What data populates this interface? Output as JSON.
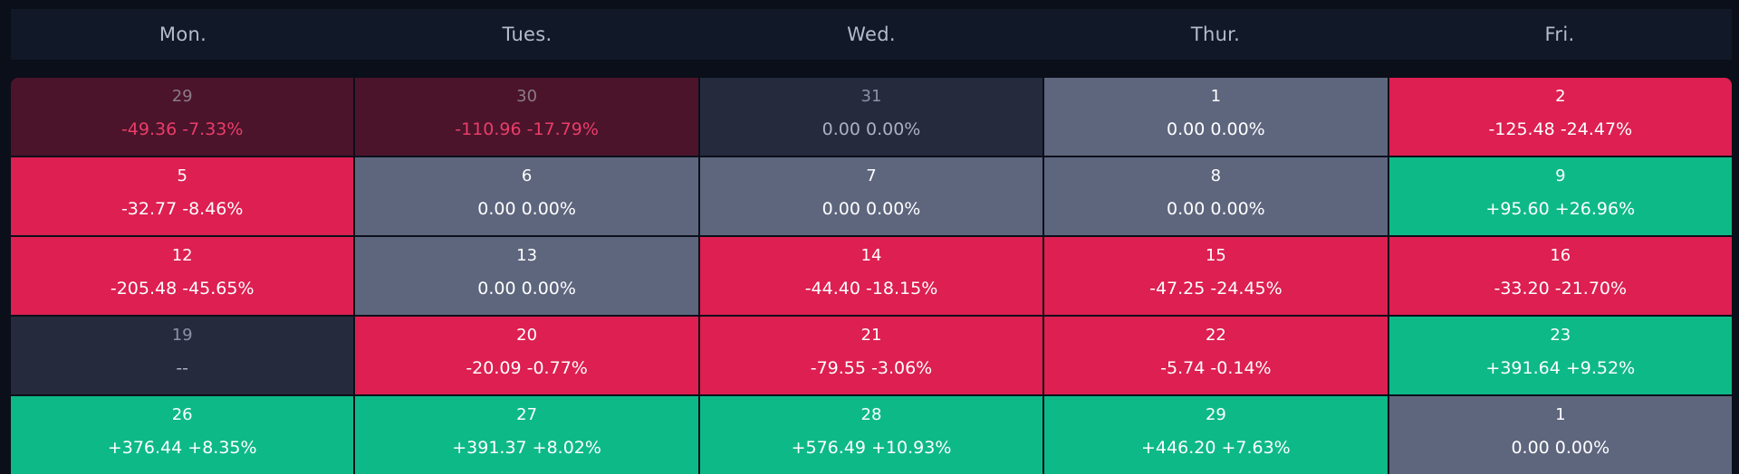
{
  "colors": {
    "background": "#0b0f1a",
    "header": "#111827",
    "loss": "#dd1f51",
    "gain": "#0eb988",
    "flat": "#5e667e",
    "muted_flat": "#252b3d",
    "muted_loss": "#4b142b"
  },
  "weekdays": [
    "Mon.",
    "Tues.",
    "Wed.",
    "Thur.",
    "Fri."
  ],
  "weeks": [
    [
      {
        "day": "29",
        "pnl": "-49.36 -7.33%",
        "status": "muted-down"
      },
      {
        "day": "30",
        "pnl": "-110.96 -17.79%",
        "status": "muted-down"
      },
      {
        "day": "31",
        "pnl": "0.00 0.00%",
        "status": "muted-flat"
      },
      {
        "day": "1",
        "pnl": "0.00 0.00%",
        "status": "flat"
      },
      {
        "day": "2",
        "pnl": "-125.48 -24.47%",
        "status": "down"
      }
    ],
    [
      {
        "day": "5",
        "pnl": "-32.77 -8.46%",
        "status": "down"
      },
      {
        "day": "6",
        "pnl": "0.00 0.00%",
        "status": "flat"
      },
      {
        "day": "7",
        "pnl": "0.00 0.00%",
        "status": "flat"
      },
      {
        "day": "8",
        "pnl": "0.00 0.00%",
        "status": "flat"
      },
      {
        "day": "9",
        "pnl": "+95.60 +26.96%",
        "status": "up"
      }
    ],
    [
      {
        "day": "12",
        "pnl": "-205.48 -45.65%",
        "status": "down"
      },
      {
        "day": "13",
        "pnl": "0.00 0.00%",
        "status": "flat"
      },
      {
        "day": "14",
        "pnl": "-44.40 -18.15%",
        "status": "down"
      },
      {
        "day": "15",
        "pnl": "-47.25 -24.45%",
        "status": "down"
      },
      {
        "day": "16",
        "pnl": "-33.20 -21.70%",
        "status": "down"
      }
    ],
    [
      {
        "day": "19",
        "pnl": "--",
        "status": "muted-flat"
      },
      {
        "day": "20",
        "pnl": "-20.09 -0.77%",
        "status": "down"
      },
      {
        "day": "21",
        "pnl": "-79.55 -3.06%",
        "status": "down"
      },
      {
        "day": "22",
        "pnl": "-5.74 -0.14%",
        "status": "down"
      },
      {
        "day": "23",
        "pnl": "+391.64 +9.52%",
        "status": "up"
      }
    ],
    [
      {
        "day": "26",
        "pnl": "+376.44 +8.35%",
        "status": "up"
      },
      {
        "day": "27",
        "pnl": "+391.37 +8.02%",
        "status": "up"
      },
      {
        "day": "28",
        "pnl": "+576.49 +10.93%",
        "status": "up"
      },
      {
        "day": "29",
        "pnl": "+446.20 +7.63%",
        "status": "up"
      },
      {
        "day": "1",
        "pnl": "0.00 0.00%",
        "status": "flat"
      }
    ]
  ]
}
